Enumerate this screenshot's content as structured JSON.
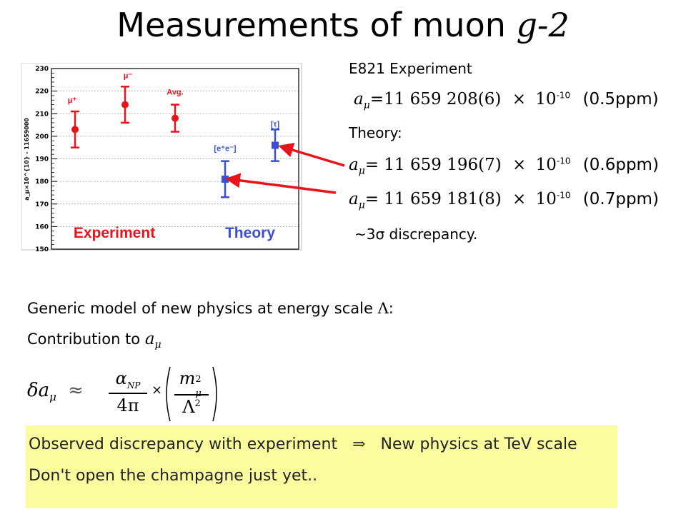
{
  "title": {
    "text": "Measurements of muon ",
    "math": "g-2"
  },
  "right_panel": {
    "experiment_heading": "E821 Experiment",
    "experiment_value": {
      "symbol": "a",
      "sub": "μ",
      "eq": "=11 659 208(6)",
      "times": "×",
      "base": "10",
      "exp": "-10",
      "ppm": "(0.5ppm)"
    },
    "theory_heading": "Theory:",
    "theory_values": [
      {
        "symbol": "a",
        "sub": "μ",
        "eq": "= 11 659 196(7)",
        "times": "×",
        "base": "10",
        "exp": "-10",
        "ppm": "(0.6ppm)"
      },
      {
        "symbol": "a",
        "sub": "μ",
        "eq": "= 11 659 181(8)",
        "times": "×",
        "base": "10",
        "exp": "-10",
        "ppm": "(0.7ppm)"
      }
    ],
    "discrepancy": "~3σ discrepancy."
  },
  "body": {
    "line1_text": "Generic model of new physics at energy scale ",
    "line1_symbol": "Λ",
    "line1_end": ":",
    "line2_text": "Contribution to ",
    "line2_symbol": "a",
    "line2_sub": "μ",
    "formula": {
      "delta": "δa",
      "sub": "μ",
      "approx": "≈",
      "alpha": "α",
      "alpha_sub": "NP",
      "denom": "4π",
      "times": "×",
      "m": "m",
      "m_sub": "μ",
      "m_sup": "2",
      "lambda": "Λ",
      "lambda_sup": "2"
    }
  },
  "highlight": {
    "line1_left": "Observed discrepancy with experiment",
    "arrow": "⇒",
    "line1_right": "New physics at TeV scale",
    "line2": "Don't open the champagne just yet.."
  },
  "chart_data": {
    "type": "scatter",
    "ylabel": "a_μ×10^{10} - 11659000",
    "ylim": [
      150,
      230
    ],
    "yticks": [
      "150",
      "160",
      "170",
      "180",
      "190",
      "200",
      "210",
      "220",
      "230"
    ],
    "grid": true,
    "group_labels": [
      "Experiment",
      "Theory"
    ],
    "colors": {
      "experiment": "#e8131b",
      "theory": "#3b4fd1",
      "arrow": "#e8131b"
    },
    "points": [
      {
        "label": "μ⁺",
        "value": 203,
        "err": 8,
        "group": "experiment",
        "marker": "circle"
      },
      {
        "label": "μ⁻",
        "value": 214,
        "err": 8,
        "group": "experiment",
        "marker": "circle"
      },
      {
        "label": "Avg.",
        "value": 208,
        "err": 6,
        "group": "experiment",
        "marker": "circle"
      },
      {
        "label": "[e⁺e⁻]",
        "value": 181,
        "err": 8,
        "group": "theory",
        "marker": "square"
      },
      {
        "label": "[τ]",
        "value": 196,
        "err": 7,
        "group": "theory",
        "marker": "square"
      }
    ]
  }
}
